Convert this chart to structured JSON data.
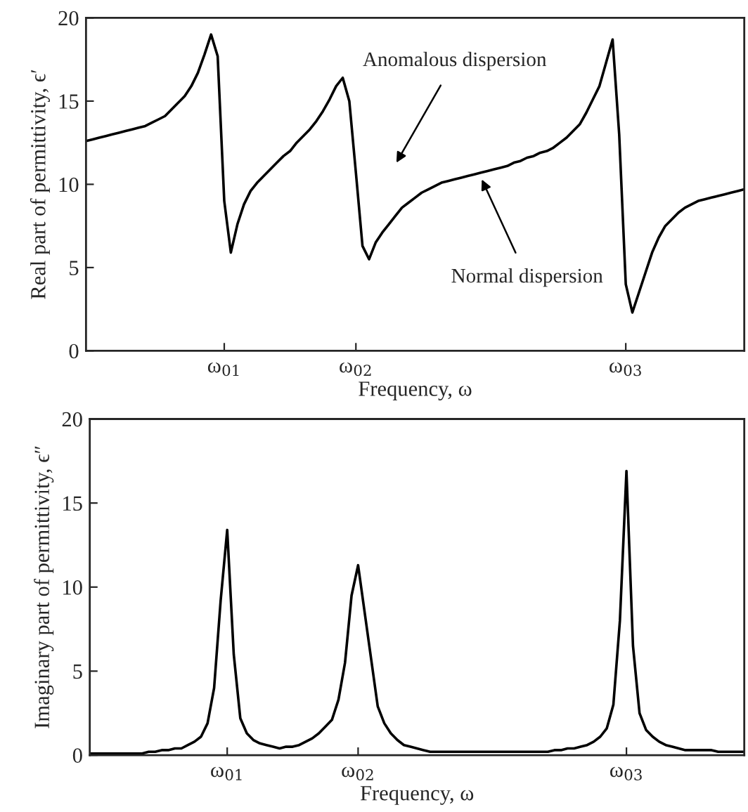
{
  "chart_data": [
    {
      "type": "line",
      "xlabel": "Frequency, ω",
      "ylabel": "Real part of permittivity, ϵ′",
      "ylim": [
        0,
        20
      ],
      "yticks": [
        0,
        5,
        10,
        15,
        20
      ],
      "grid": false,
      "marker": "none",
      "line_style": "solid",
      "categories": [
        null,
        null,
        null,
        null,
        null,
        null,
        null,
        null,
        null,
        null,
        null,
        null,
        null,
        null,
        null,
        null,
        null,
        null,
        null,
        null,
        null,
        "ω$_{01}$",
        null,
        null,
        null,
        null,
        null,
        null,
        null,
        null,
        null,
        null,
        null,
        null,
        null,
        null,
        null,
        null,
        null,
        null,
        null,
        "ω$_{02}$",
        null,
        null,
        null,
        null,
        null,
        null,
        null,
        null,
        null,
        null,
        null,
        null,
        null,
        null,
        null,
        null,
        null,
        null,
        null,
        null,
        null,
        null,
        null,
        null,
        null,
        null,
        null,
        null,
        null,
        null,
        null,
        null,
        null,
        null,
        null,
        null,
        null,
        null,
        null,
        null,
        "ω$_{03}$",
        null,
        null,
        null,
        null,
        null,
        null,
        null,
        null,
        null,
        null,
        null,
        null,
        null,
        null,
        null,
        null,
        null,
        null
      ],
      "series": [
        {
          "color": "#000000",
          "values": [
            12.6,
            12.7,
            12.8,
            12.9,
            13.0,
            13.1,
            13.2,
            13.3,
            13.4,
            13.5,
            13.7,
            13.9,
            14.1,
            14.5,
            14.9,
            15.3,
            15.9,
            16.7,
            17.8,
            19.0,
            17.7,
            9.0,
            5.9,
            7.6,
            8.8,
            9.6,
            10.1,
            10.5,
            10.9,
            11.3,
            11.7,
            12.0,
            12.5,
            12.9,
            13.3,
            13.8,
            14.4,
            15.1,
            15.9,
            16.4,
            15.0,
            10.7,
            6.3,
            5.5,
            6.5,
            7.1,
            7.6,
            8.1,
            8.6,
            8.9,
            9.2,
            9.5,
            9.7,
            9.9,
            10.1,
            10.2,
            10.3,
            10.4,
            10.5,
            10.6,
            10.7,
            10.8,
            10.9,
            11.0,
            11.1,
            11.3,
            11.4,
            11.6,
            11.7,
            11.9,
            12.0,
            12.2,
            12.5,
            12.8,
            13.2,
            13.6,
            14.3,
            15.1,
            15.9,
            17.3,
            18.7,
            13.0,
            4.0,
            2.3,
            3.5,
            4.7,
            5.9,
            6.8,
            7.5,
            7.9,
            8.3,
            8.6,
            8.8,
            9.0,
            9.1,
            9.2,
            9.3,
            9.4,
            9.5,
            9.6,
            9.7
          ]
        }
      ],
      "annotations": [
        "Anomalous dispersion",
        "Normal dispersion"
      ]
    },
    {
      "type": "line",
      "xlabel": "Frequency, ω",
      "ylabel": "Imaginary part of permittivity, ϵ″",
      "ylim": [
        0,
        20
      ],
      "yticks": [
        0,
        5,
        10,
        15,
        20
      ],
      "grid": false,
      "marker": "none",
      "line_style": "solid",
      "categories": [
        null,
        null,
        null,
        null,
        null,
        null,
        null,
        null,
        null,
        null,
        null,
        null,
        null,
        null,
        null,
        null,
        null,
        null,
        null,
        null,
        null,
        "ω$_{01}$",
        null,
        null,
        null,
        null,
        null,
        null,
        null,
        null,
        null,
        null,
        null,
        null,
        null,
        null,
        null,
        null,
        null,
        null,
        null,
        "ω$_{02}$",
        null,
        null,
        null,
        null,
        null,
        null,
        null,
        null,
        null,
        null,
        null,
        null,
        null,
        null,
        null,
        null,
        null,
        null,
        null,
        null,
        null,
        null,
        null,
        null,
        null,
        null,
        null,
        null,
        null,
        null,
        null,
        null,
        null,
        null,
        null,
        null,
        null,
        null,
        null,
        null,
        "ω$_{03}$",
        null,
        null,
        null,
        null,
        null,
        null,
        null,
        null,
        null,
        null,
        null,
        null,
        null,
        null,
        null,
        null,
        null,
        null
      ],
      "series": [
        {
          "color": "#000000",
          "values": [
            0.1,
            0.1,
            0.1,
            0.1,
            0.1,
            0.1,
            0.1,
            0.1,
            0.1,
            0.2,
            0.2,
            0.3,
            0.3,
            0.4,
            0.4,
            0.6,
            0.8,
            1.1,
            1.9,
            4.0,
            9.2,
            13.4,
            6.0,
            2.2,
            1.3,
            0.9,
            0.7,
            0.6,
            0.5,
            0.4,
            0.5,
            0.5,
            0.6,
            0.8,
            1.0,
            1.3,
            1.7,
            2.1,
            3.3,
            5.5,
            9.5,
            11.3,
            8.5,
            5.7,
            2.9,
            1.9,
            1.3,
            0.9,
            0.6,
            0.5,
            0.4,
            0.3,
            0.2,
            0.2,
            0.2,
            0.2,
            0.2,
            0.2,
            0.2,
            0.2,
            0.2,
            0.2,
            0.2,
            0.2,
            0.2,
            0.2,
            0.2,
            0.2,
            0.2,
            0.2,
            0.2,
            0.3,
            0.3,
            0.4,
            0.4,
            0.5,
            0.6,
            0.8,
            1.1,
            1.6,
            3.0,
            8.0,
            16.9,
            6.5,
            2.5,
            1.5,
            1.1,
            0.8,
            0.6,
            0.5,
            0.4,
            0.3,
            0.3,
            0.3,
            0.3,
            0.3,
            0.2,
            0.2,
            0.2,
            0.2,
            0.2
          ]
        }
      ]
    }
  ]
}
